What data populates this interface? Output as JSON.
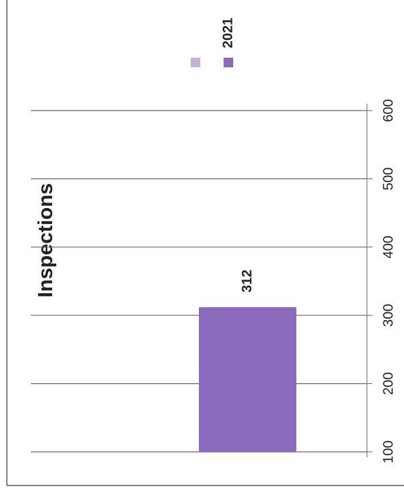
{
  "chart_data": {
    "type": "bar",
    "title": "Inspections",
    "categories": [
      null
    ],
    "series": [
      {
        "name": null,
        "color": "#c6b1da",
        "values": [
          null
        ]
      },
      {
        "name": "2021",
        "color": "#8b69bd",
        "values": [
          312
        ]
      }
    ],
    "ylim": [
      100,
      600
    ],
    "yticks": [
      100,
      200,
      300,
      400,
      500,
      600
    ],
    "grid": true
  }
}
